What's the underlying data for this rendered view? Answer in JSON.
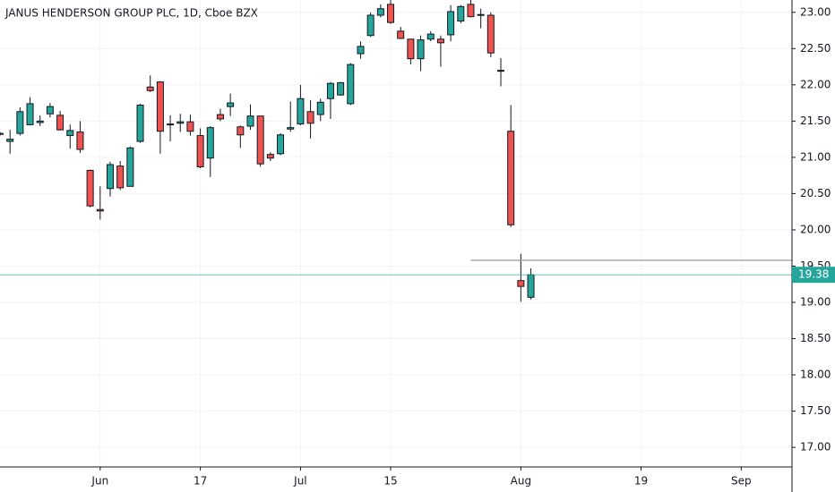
{
  "chart_data": {
    "type": "candlestick",
    "title": "JANUS HENDERSON GROUP PLC, 1D, Cboe BZX",
    "categories": [
      null,
      null,
      null,
      null,
      null,
      null,
      null,
      null,
      null,
      null,
      "Jun",
      null,
      null,
      null,
      null,
      null,
      null,
      null,
      null,
      null,
      "17",
      null,
      null,
      null,
      null,
      null,
      null,
      null,
      null,
      null,
      "Jul",
      null,
      null,
      null,
      null,
      null,
      null,
      null,
      null,
      "15",
      null,
      null,
      null,
      null,
      null,
      null,
      null,
      null,
      null,
      null,
      null,
      null,
      "Aug",
      null,
      null,
      null,
      null,
      null,
      null,
      null,
      null,
      null,
      null,
      null,
      "19",
      null,
      null,
      null,
      null,
      null,
      null,
      null,
      null,
      null,
      "Sep",
      null,
      null,
      null,
      null
    ],
    "open": [
      21.32,
      21.22,
      21.33,
      21.45,
      21.48,
      21.6,
      21.58,
      21.3,
      21.35,
      20.82,
      20.28,
      20.57,
      20.88,
      20.6,
      21.22,
      21.97,
      22.04,
      21.45,
      21.47,
      21.49,
      21.3,
      20.99,
      21.59,
      21.7,
      21.42,
      21.43,
      21.57,
      21.04,
      21.05,
      21.39,
      21.46,
      21.63,
      21.59,
      21.81,
      21.86,
      21.74,
      22.43,
      22.68,
      22.96,
      23.11,
      22.74,
      22.63,
      22.36,
      22.63,
      22.63,
      22.69,
      22.88,
      23.11,
      22.97,
      22.96,
      22.2,
      21.36,
      19.3,
      19.07,
      null,
      null,
      null,
      null,
      null,
      null,
      null,
      null,
      null,
      null,
      null,
      null,
      null,
      null,
      null,
      null,
      null,
      null,
      null,
      null,
      null,
      null,
      null,
      null,
      null
    ],
    "high": [
      21.35,
      21.38,
      21.69,
      21.83,
      21.58,
      21.75,
      21.64,
      21.45,
      21.5,
      20.83,
      20.6,
      20.94,
      20.95,
      21.15,
      21.74,
      22.13,
      22.05,
      21.58,
      21.6,
      21.59,
      21.4,
      21.43,
      21.67,
      21.88,
      21.44,
      21.73,
      21.57,
      21.07,
      21.33,
      21.77,
      22.0,
      21.79,
      21.81,
      22.04,
      22.04,
      22.3,
      22.6,
      23.0,
      23.11,
      23.17,
      22.8,
      22.63,
      22.68,
      22.74,
      22.68,
      23.1,
      23.1,
      23.17,
      23.05,
      23.0,
      22.37,
      21.72,
      19.67,
      19.47,
      null,
      null,
      null,
      null,
      null,
      null,
      null,
      null,
      null,
      null,
      null,
      null,
      null,
      null,
      null,
      null,
      null,
      null,
      null,
      null,
      null,
      null,
      null,
      null,
      null
    ],
    "low": [
      21.3,
      21.05,
      21.3,
      21.44,
      21.43,
      21.55,
      21.37,
      21.12,
      21.06,
      20.31,
      20.14,
      20.46,
      20.55,
      20.6,
      21.2,
      21.9,
      21.05,
      21.22,
      21.35,
      21.3,
      20.85,
      20.73,
      21.5,
      21.57,
      21.13,
      21.38,
      20.87,
      20.95,
      21.03,
      21.35,
      21.44,
      21.26,
      21.5,
      21.53,
      21.85,
      21.72,
      22.36,
      22.66,
      22.93,
      22.84,
      22.64,
      22.28,
      22.19,
      22.6,
      22.25,
      22.6,
      22.85,
      22.93,
      22.78,
      22.38,
      21.98,
      20.04,
      19.01,
      19.04,
      null,
      null,
      null,
      null,
      null,
      null,
      null,
      null,
      null,
      null,
      null,
      null,
      null,
      null,
      null,
      null,
      null,
      null,
      null,
      null,
      null,
      null,
      null,
      null,
      null
    ],
    "close": [
      21.33,
      21.25,
      21.63,
      21.74,
      21.5,
      21.7,
      21.38,
      21.37,
      21.11,
      20.33,
      20.26,
      20.9,
      20.58,
      21.13,
      21.72,
      21.92,
      21.36,
      21.46,
      21.49,
      21.36,
      20.87,
      21.41,
      21.53,
      21.75,
      21.31,
      21.57,
      20.91,
      20.99,
      21.31,
      21.41,
      21.81,
      21.47,
      21.76,
      22.02,
      22.03,
      22.28,
      22.53,
      22.96,
      23.05,
      22.86,
      22.64,
      22.36,
      22.62,
      22.7,
      22.58,
      23.01,
      23.08,
      22.94,
      22.96,
      22.44,
      22.2,
      20.07,
      19.22,
      19.38,
      null,
      null,
      null,
      null,
      null,
      null,
      null,
      null,
      null,
      null,
      null,
      null,
      null,
      null,
      null,
      null,
      null,
      null,
      null,
      null,
      null,
      null,
      null,
      null,
      null
    ],
    "up_color": "#26a69a",
    "down_color": "#ef5350",
    "ylim": [
      16.73,
      23.17
    ],
    "yticks": [
      {
        "value": 17,
        "label": "17.00"
      },
      {
        "value": 17.5,
        "label": "17.50"
      },
      {
        "value": 18,
        "label": "18.00"
      },
      {
        "value": 18.5,
        "label": "18.50"
      },
      {
        "value": 19,
        "label": "19.00"
      },
      {
        "value": 19.5,
        "label": "19.50"
      },
      {
        "value": 20,
        "label": "20.00"
      },
      {
        "value": 20.5,
        "label": "20.50"
      },
      {
        "value": 21,
        "label": "21.00"
      },
      {
        "value": 21.5,
        "label": "21.50"
      },
      {
        "value": 22,
        "label": "22.00"
      },
      {
        "value": 22.5,
        "label": "22.50"
      },
      {
        "value": 23,
        "label": "23.00"
      }
    ],
    "last_price": 19.38,
    "reference_line": 19.58,
    "grid": true
  }
}
